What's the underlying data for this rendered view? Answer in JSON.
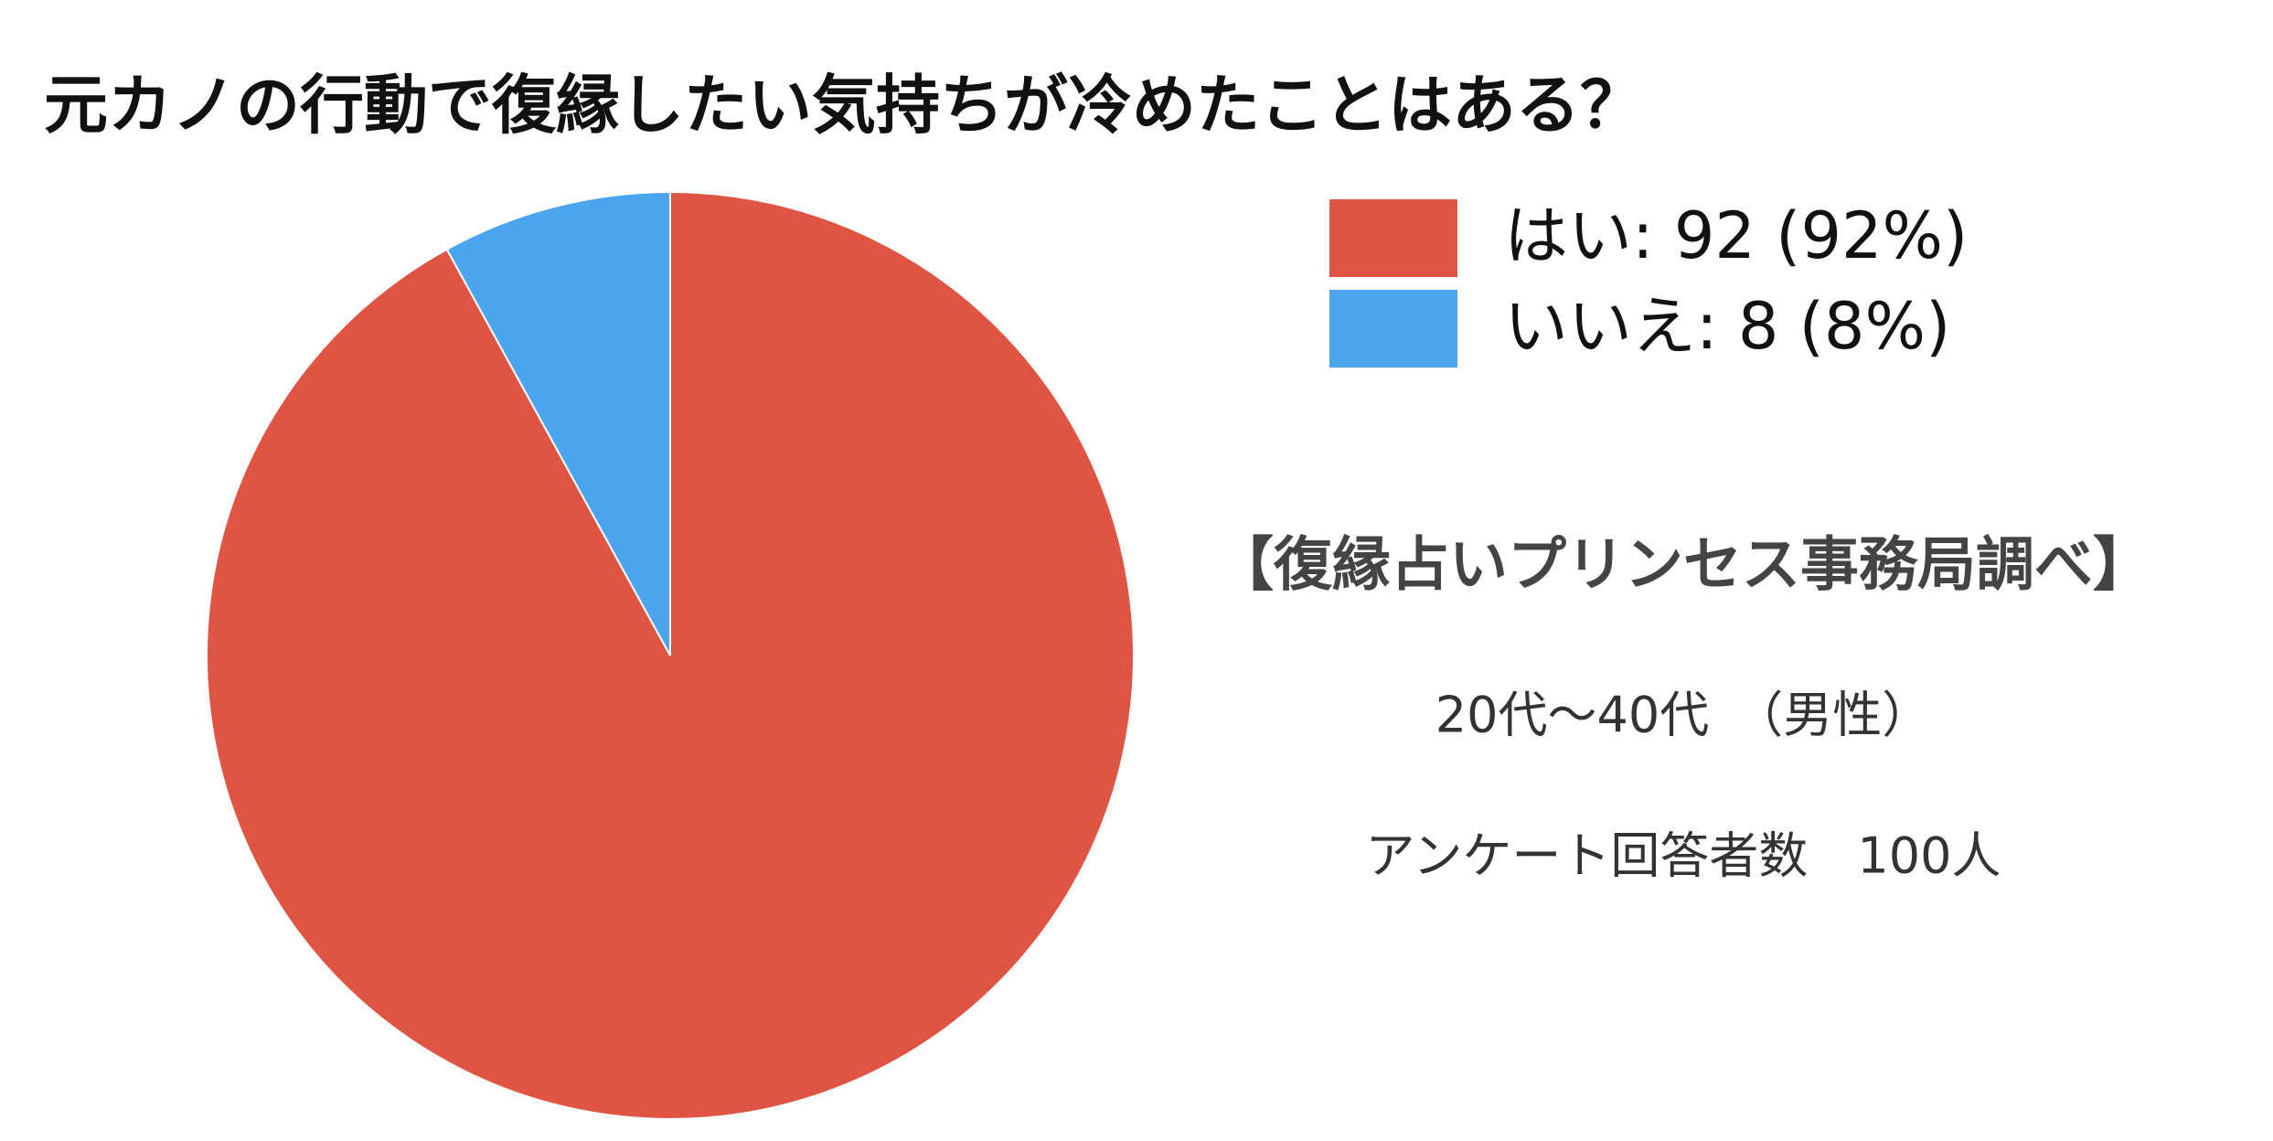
{
  "chart_data": {
    "type": "pie",
    "title": "元カノの行動で復縁したい気持ちが冷めたことはある？",
    "values": [
      92,
      8
    ],
    "value_labels": [
      "はい: 92 (92%)",
      "いいえ: 8 (8%)"
    ],
    "colors": [
      "#e05444",
      "#4aa5ee"
    ],
    "start_angle": 0,
    "direction": "clockwise",
    "legend": "top-right",
    "notes": [
      "【復縁占いプリンセス事務局調べ】",
      "20代〜40代　（男性）",
      "アンケート回答者数　100人"
    ]
  }
}
